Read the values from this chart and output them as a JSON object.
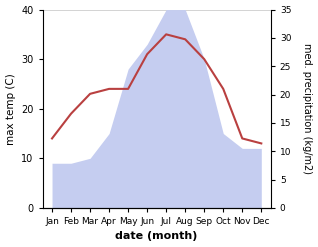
{
  "months": [
    "Jan",
    "Feb",
    "Mar",
    "Apr",
    "May",
    "Jun",
    "Jul",
    "Aug",
    "Sep",
    "Oct",
    "Nov",
    "Dec"
  ],
  "precipitation": [
    9,
    9,
    10,
    15,
    28,
    33,
    40,
    40,
    30,
    15,
    12,
    12
  ],
  "temperature": [
    14,
    19,
    23,
    24,
    24,
    31,
    35,
    34,
    30,
    24,
    14,
    13
  ],
  "temp_color": "#b94040",
  "precip_fill_color": "#c5cdf0",
  "ylim_left": [
    0,
    40
  ],
  "ylim_right": [
    0,
    35
  ],
  "yticks_left": [
    0,
    10,
    20,
    30,
    40
  ],
  "yticks_right": [
    0,
    5,
    10,
    15,
    20,
    25,
    30,
    35
  ],
  "xlabel": "date (month)",
  "ylabel_left": "max temp (C)",
  "ylabel_right": "med. precipitation (kg/m2)",
  "fig_width": 3.18,
  "fig_height": 2.47,
  "dpi": 100
}
